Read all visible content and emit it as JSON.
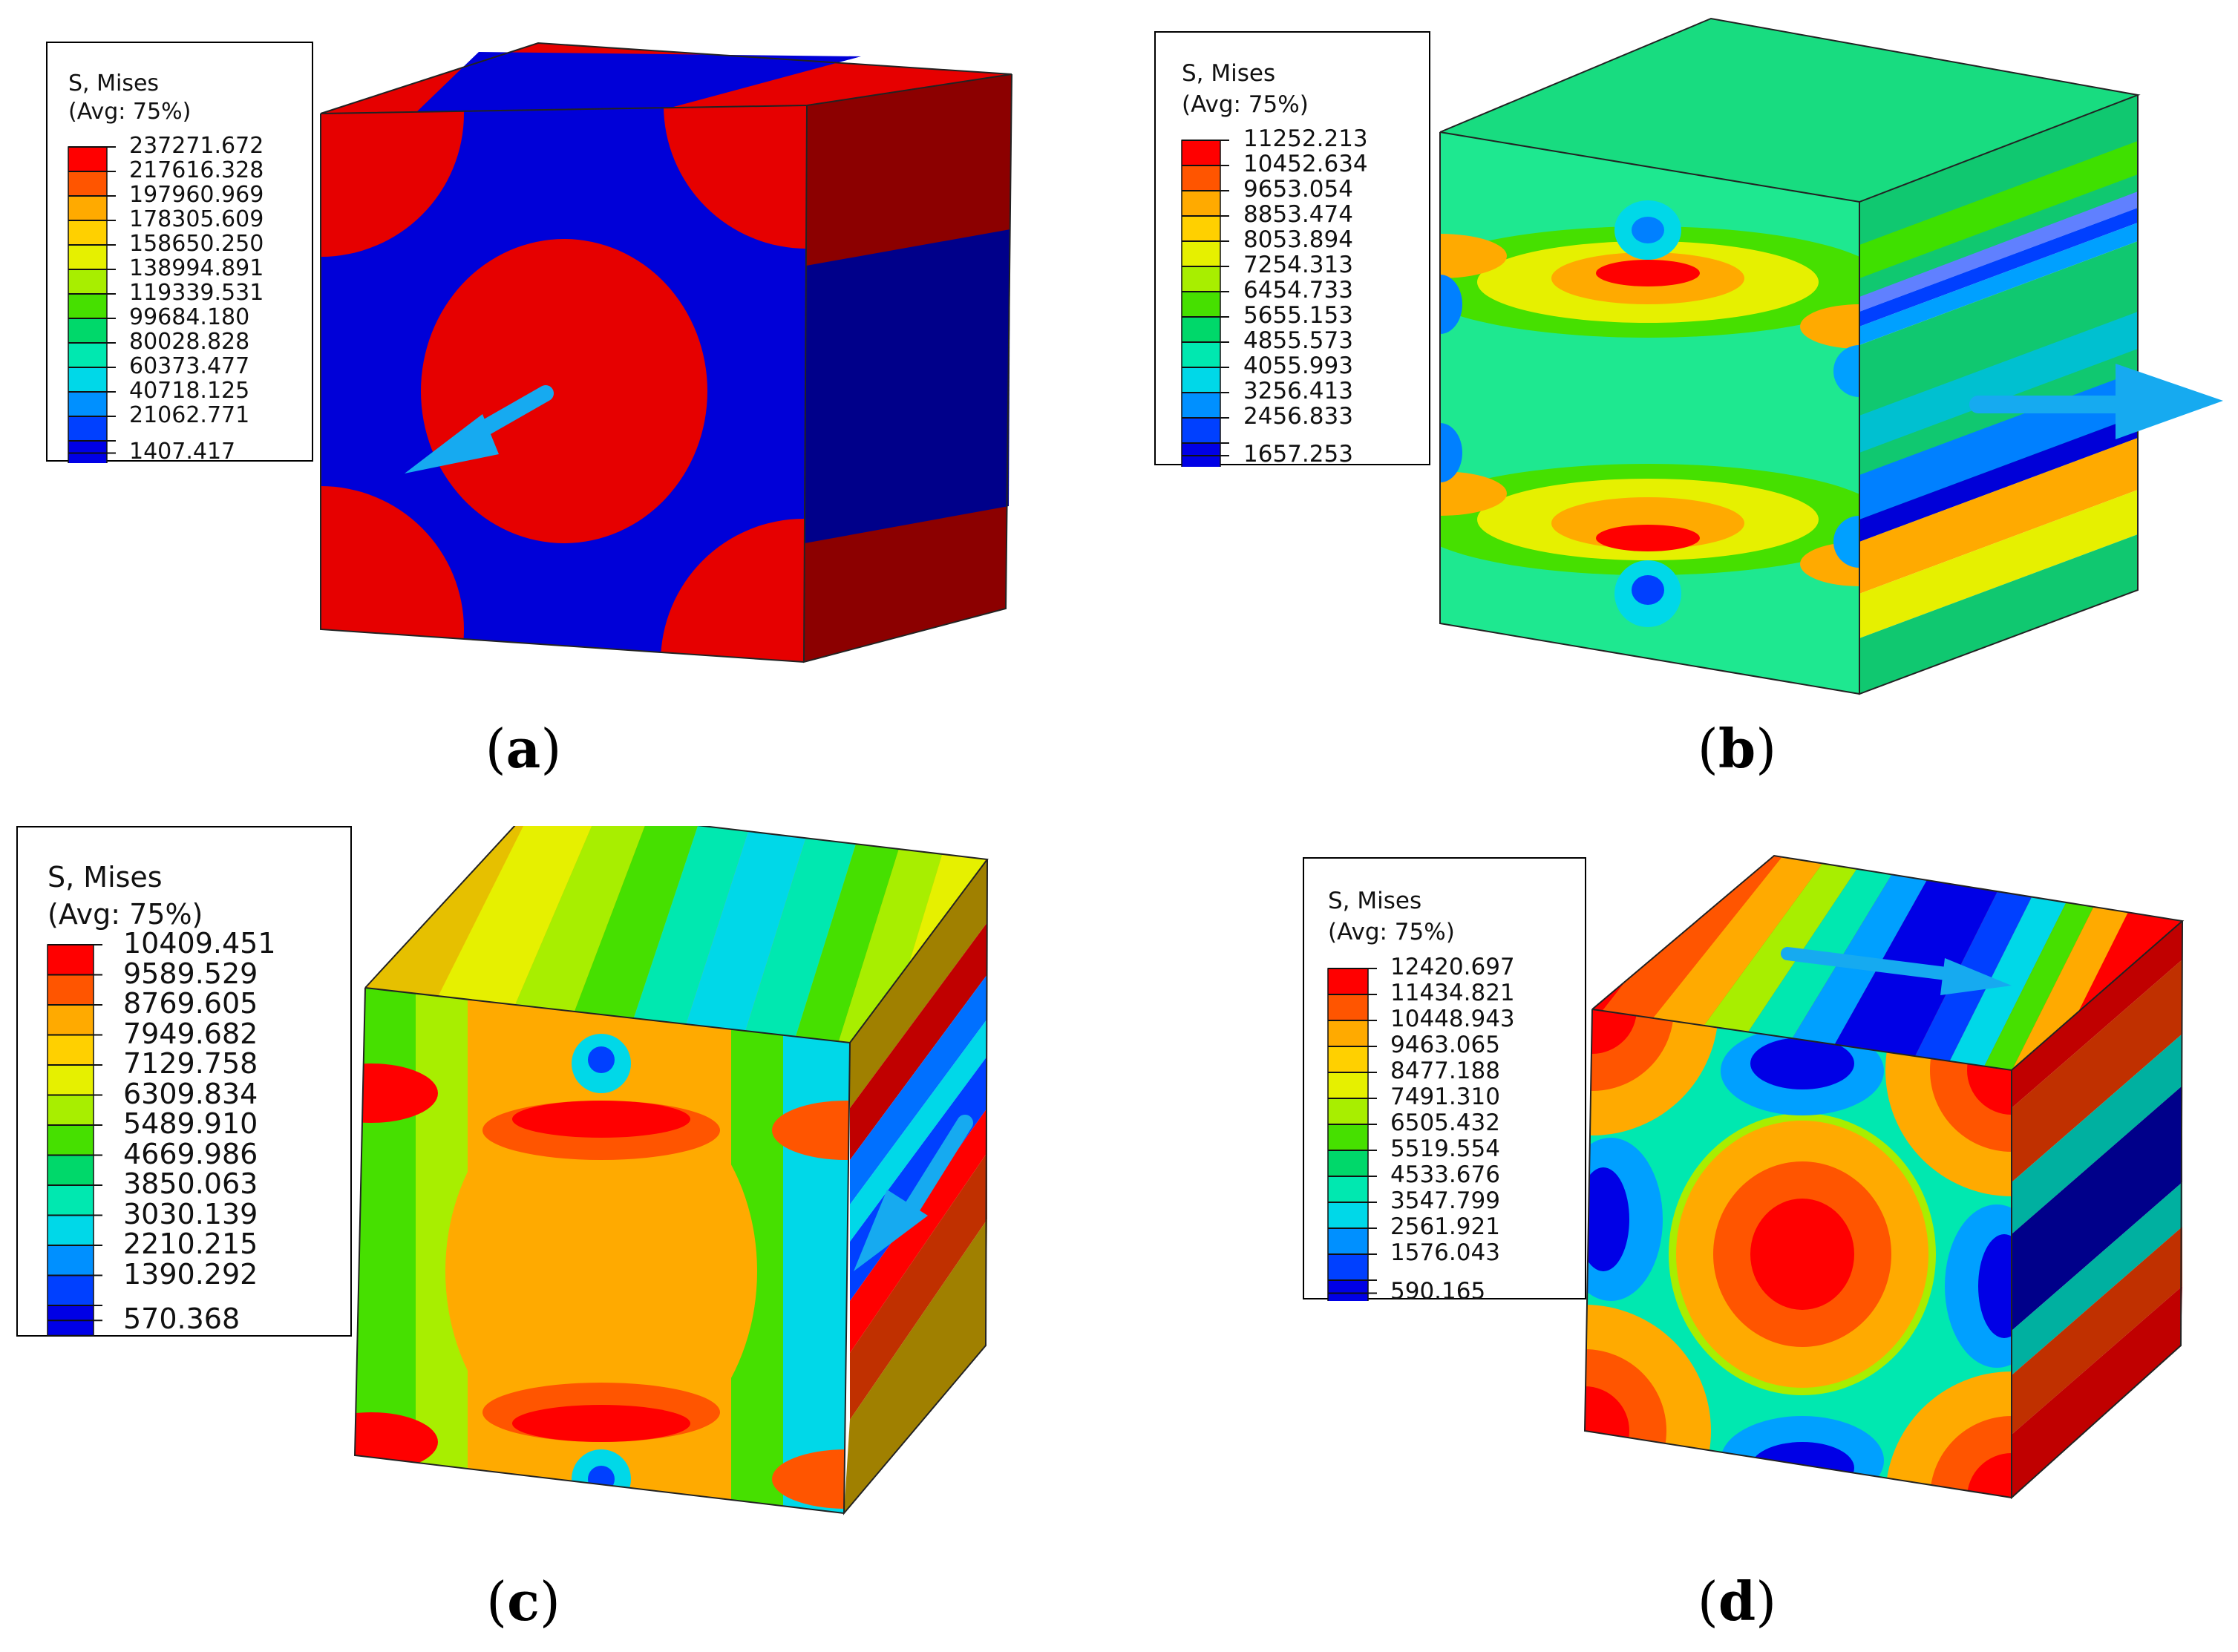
{
  "figure": {
    "panels": [
      {
        "id": "a",
        "caption_open": "(",
        "caption_letter": "a",
        "caption_close": ")",
        "legend_title_1": "S, Mises",
        "legend_title_2": "(Avg: 75%)",
        "legend_values": [
          "237271.672",
          "217616.328",
          "197960.969",
          "178305.609",
          "158650.250",
          "138994.891",
          "119339.531",
          "99684.180",
          "80028.828",
          "60373.477",
          "40718.125",
          "21062.771",
          "1407.417"
        ],
        "arrow_direction": "down-left"
      },
      {
        "id": "b",
        "caption_open": "(",
        "caption_letter": "b",
        "caption_close": ")",
        "legend_title_1": "S, Mises",
        "legend_title_2": "(Avg: 75%)",
        "legend_values": [
          "11252.213",
          "10452.634",
          "9653.054",
          "8853.474",
          "8053.894",
          "7254.313",
          "6454.733",
          "5655.153",
          "4855.573",
          "4055.993",
          "3256.413",
          "2456.833",
          "1657.253"
        ],
        "arrow_direction": "right"
      },
      {
        "id": "c",
        "caption_open": "(",
        "caption_letter": "c",
        "caption_close": ")",
        "legend_title_1": "S, Mises",
        "legend_title_2": "(Avg: 75%)",
        "legend_values": [
          "10409.451",
          "9589.529",
          "8769.605",
          "7949.682",
          "7129.758",
          "6309.834",
          "5489.910",
          "4669.986",
          "3850.063",
          "3030.139",
          "2210.215",
          "1390.292",
          "570.368"
        ],
        "arrow_direction": "down-left"
      },
      {
        "id": "d",
        "caption_open": "(",
        "caption_letter": "d",
        "caption_close": ")",
        "legend_title_1": "S, Mises",
        "legend_title_2": "(Avg: 75%)",
        "legend_values": [
          "12420.697",
          "11434.821",
          "10448.943",
          "9463.065",
          "8477.188",
          "7491.310",
          "6505.432",
          "5519.554",
          "4533.676",
          "3547.799",
          "2561.921",
          "1576.043",
          "590.165"
        ],
        "arrow_direction": "right"
      }
    ],
    "colormap": [
      "#ff0000",
      "#ff5500",
      "#ffaa00",
      "#ffd000",
      "#e6f000",
      "#a8ee00",
      "#46e000",
      "#00d86a",
      "#00e8b0",
      "#00d8e8",
      "#0090ff",
      "#0040ff",
      "#0000e6"
    ],
    "colors": {
      "red": "#e60000",
      "dark_red": "#8c0000",
      "blue": "#0000d8",
      "dark_blue": "#00008a",
      "green_top": "#18dc80",
      "arrow": "#16aaf0"
    }
  }
}
